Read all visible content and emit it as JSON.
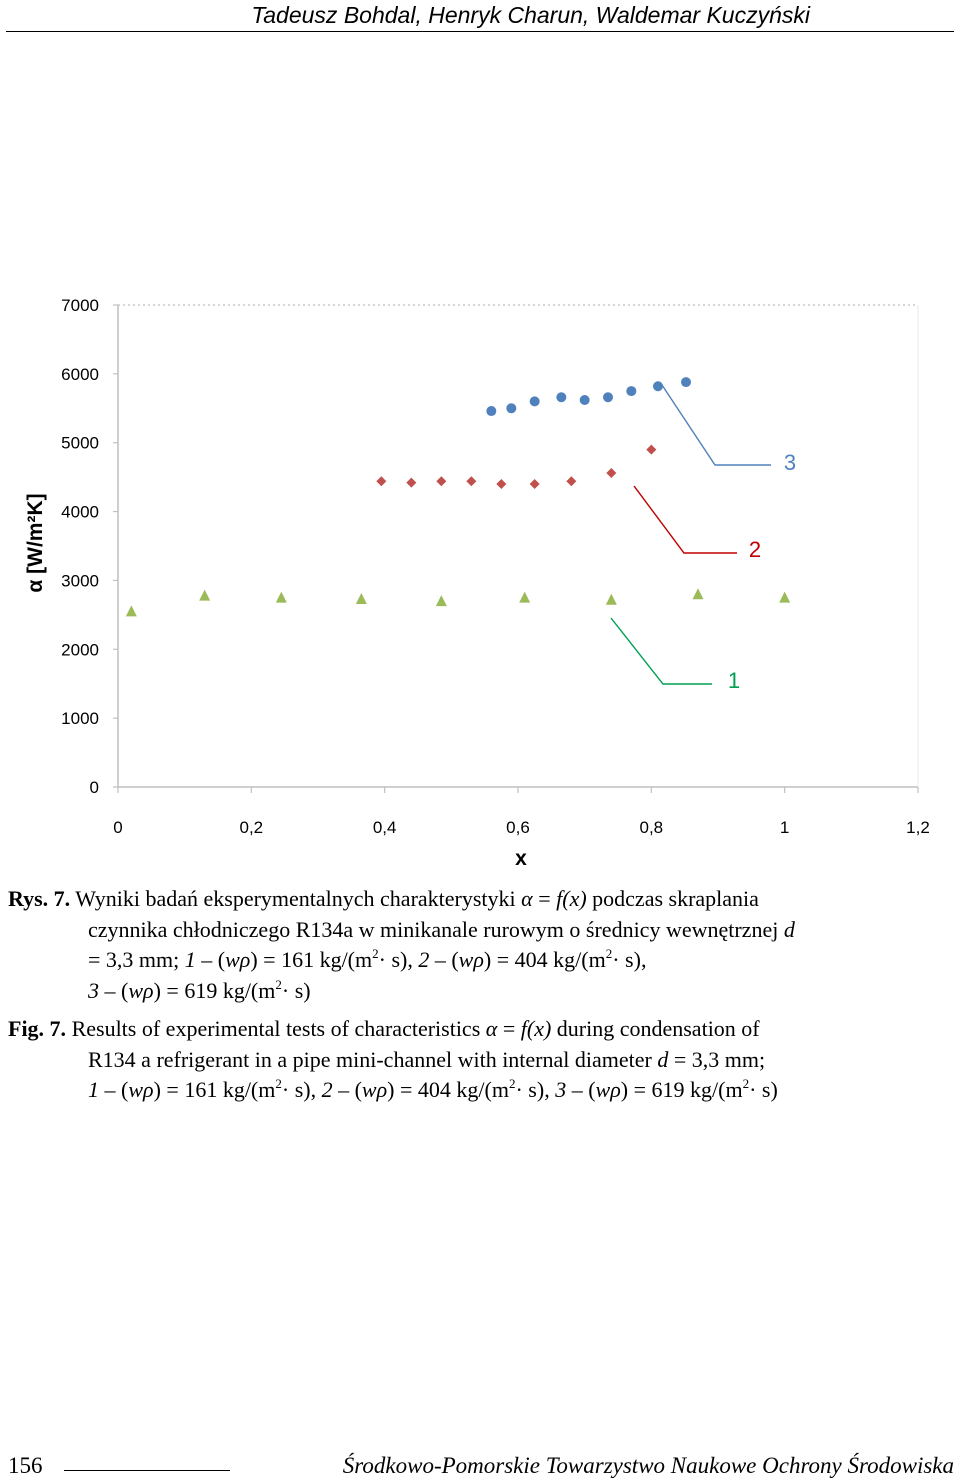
{
  "header": {
    "authors": "Tadeusz Bohdal, Henryk Charun, Waldemar Kuczyński"
  },
  "chart_data": {
    "type": "scatter",
    "title": "",
    "xlabel": "x",
    "ylabel": "α [W/m²K]",
    "xlim": [
      0,
      1.2
    ],
    "ylim": [
      0,
      7000
    ],
    "x_ticks": [
      "0",
      "0,2",
      "0,4",
      "0,6",
      "0,8",
      "1",
      "1,2"
    ],
    "y_ticks": [
      "0",
      "1000",
      "2000",
      "3000",
      "4000",
      "5000",
      "6000",
      "7000"
    ],
    "grid": "dotted top border only",
    "series": [
      {
        "name": "1",
        "marker": "triangle",
        "color": "#9BBB59",
        "x": [
          0.02,
          0.13,
          0.245,
          0.365,
          0.485,
          0.61,
          0.74,
          0.87,
          1.0
        ],
        "y": [
          2550,
          2780,
          2750,
          2730,
          2700,
          2750,
          2720,
          2800,
          2750
        ]
      },
      {
        "name": "2",
        "marker": "diamond",
        "color": "#C0504D",
        "x": [
          0.395,
          0.44,
          0.485,
          0.53,
          0.575,
          0.625,
          0.68,
          0.74,
          0.8
        ],
        "y": [
          4440,
          4420,
          4440,
          4440,
          4400,
          4400,
          4440,
          4560,
          4900
        ]
      },
      {
        "name": "3",
        "marker": "circle",
        "color": "#4F81BD",
        "x": [
          0.56,
          0.59,
          0.625,
          0.665,
          0.7,
          0.735,
          0.77,
          0.81,
          0.852
        ],
        "y": [
          5460,
          5500,
          5600,
          5660,
          5620,
          5660,
          5750,
          5820,
          5880
        ]
      }
    ],
    "annotations": [
      {
        "text": "1",
        "color": "#00A050"
      },
      {
        "text": "2",
        "color": "#C00000"
      },
      {
        "text": "3",
        "color": "#4F81BD"
      }
    ]
  },
  "caption_pl": {
    "label": "Rys. 7.",
    "text1": " Wyniki badań eksperymentalnych charakterystyki ",
    "alpha": "α",
    "eq1": " = ",
    "fx": "f(x)",
    "text2": " podczas skraplania",
    "line2a": "czynnika chłodniczego R134a w minikanale rurowym o średnicy wewnętrznej ",
    "d": "d",
    "line3a": "= 3,3 mm; ",
    "n1": "1",
    "w": "w",
    "rho": "ρ",
    "v1": "161 kg/(m",
    "v2": "404 kg/(m",
    "v3": "619 kg/(m",
    "exp": "2",
    "s": "· s)",
    "n2": "2",
    "n3": "3"
  },
  "caption_en": {
    "label": "Fig. 7.",
    "text1": " Results of experimental tests of characteristics ",
    "text2": " during condensation of",
    "line2a": "R134 a refrigerant in a pipe mini-channel with internal diameter ",
    "line2b": " = 3,3 mm;"
  },
  "footer": {
    "page_number": "156",
    "journal": "Środkowo-Pomorskie Towarzystwo Naukowe Ochrony Środowiska"
  }
}
